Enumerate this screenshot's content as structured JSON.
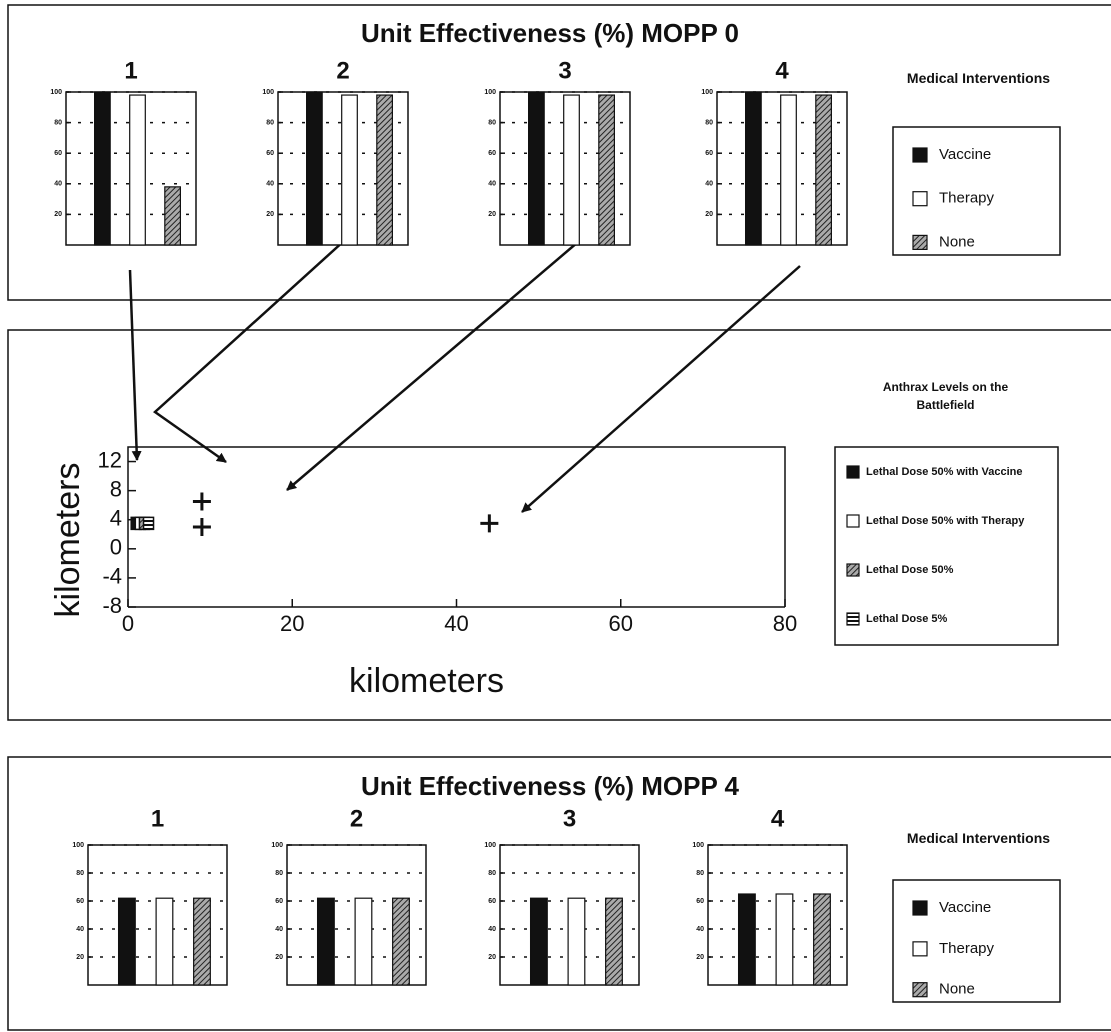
{
  "chart_data": [
    {
      "type": "bar",
      "title": "Unit Effectiveness (%) MOPP 0",
      "legend_title": "Medical Interventions",
      "categories": [
        "1",
        "2",
        "3",
        "4"
      ],
      "series": [
        {
          "name": "Vaccine",
          "color": "#111111",
          "values": [
            100,
            100,
            100,
            100
          ]
        },
        {
          "name": "Therapy",
          "color": "#ffffff",
          "values": [
            98,
            98,
            98,
            98
          ]
        },
        {
          "name": "None",
          "color": "#777777",
          "pattern": "hatch",
          "values": [
            38,
            98,
            98,
            98
          ]
        }
      ],
      "ylim": [
        0,
        100
      ],
      "yticks": [
        20,
        40,
        60,
        80,
        100
      ],
      "grid": true
    },
    {
      "type": "scatter",
      "legend_title": "Anthrax Levels on the Battlefield",
      "xlabel": "kilometers",
      "ylabel": "kilometers",
      "xlim": [
        0,
        80
      ],
      "xticks": [
        0,
        20,
        40,
        60,
        80
      ],
      "ylim": [
        -8,
        14
      ],
      "yticks": [
        -8,
        -4,
        0,
        4,
        8,
        12
      ],
      "x": [
        9,
        9,
        44
      ],
      "values": [
        6.5,
        3,
        3.5
      ],
      "series": [
        {
          "name": "Lethal Dose 50% with Vaccine",
          "color": "#111111",
          "x": [
            1
          ],
          "values": [
            3.5
          ]
        },
        {
          "name": "Lethal Dose 50% with Therapy",
          "color": "#ffffff",
          "x": [
            1.5
          ],
          "values": [
            3.5
          ]
        },
        {
          "name": "Lethal Dose 50%",
          "color": "#777777",
          "pattern": "hatch",
          "x": [
            2
          ],
          "values": [
            3.5
          ]
        },
        {
          "name": "Lethal Dose 5%",
          "color": "#555555",
          "pattern": "stripe",
          "x": [
            2.5
          ],
          "values": [
            3.5
          ]
        }
      ]
    },
    {
      "type": "bar",
      "title": "Unit Effectiveness (%) MOPP 4",
      "legend_title": "Medical Interventions",
      "categories": [
        "1",
        "2",
        "3",
        "4"
      ],
      "series": [
        {
          "name": "Vaccine",
          "color": "#111111",
          "values": [
            62,
            62,
            62,
            65
          ]
        },
        {
          "name": "Therapy",
          "color": "#ffffff",
          "values": [
            62,
            62,
            62,
            65
          ]
        },
        {
          "name": "None",
          "color": "#777777",
          "pattern": "hatch",
          "values": [
            62,
            62,
            62,
            65
          ]
        }
      ],
      "ylim": [
        0,
        100
      ],
      "yticks": [
        20,
        40,
        60,
        80,
        100
      ],
      "grid": true
    }
  ]
}
